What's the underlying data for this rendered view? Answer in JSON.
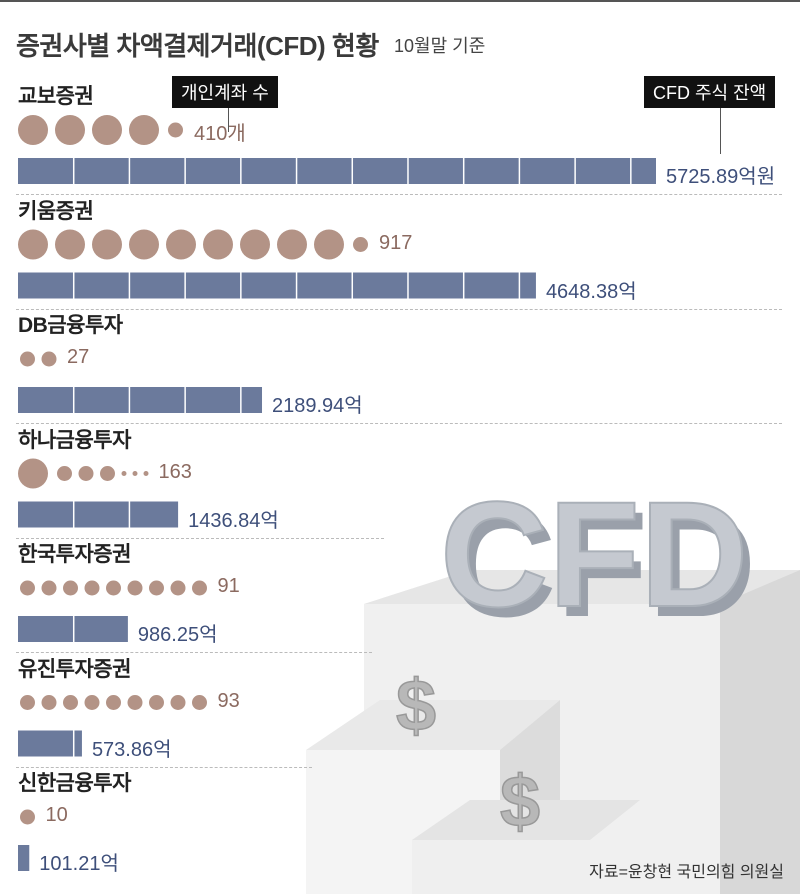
{
  "title": "증권사별 차액결제거래(CFD) 현황",
  "subtitle": "10월말 기준",
  "tags": {
    "accounts": "개인계좌 수",
    "balance": "CFD 주식 잔액"
  },
  "source": "자료=윤창현 국민의힘 의원실",
  "illustration": {
    "text": "CFD",
    "symbol": "$"
  },
  "colors": {
    "bar": "#6b7a9c",
    "dot": "#b39386",
    "value_text": "#3e4f7a",
    "count_text": "#8b6a60"
  },
  "chart_data": {
    "type": "bar",
    "categories": [
      "교보증권",
      "키움증권",
      "DB금융투자",
      "하나금융투자",
      "한국투자증권",
      "유진투자증권",
      "신한금융투자"
    ],
    "series": [
      {
        "name": "CFD 주식 잔액",
        "values": [
          5725.89,
          4648.38,
          2189.94,
          1436.84,
          986.25,
          573.86,
          101.21
        ]
      },
      {
        "name": "개인계좌 수",
        "values": [
          410,
          917,
          27,
          163,
          91,
          93,
          10
        ]
      }
    ],
    "value_labels": [
      "5725.89억원",
      "4648.38억",
      "2189.94억",
      "1436.84억",
      "986.25억",
      "573.86억",
      "101.21억"
    ],
    "count_labels": [
      "410개",
      "917",
      "27",
      "163",
      "91",
      "93",
      "10"
    ],
    "bar_segment_unit": 500
  }
}
